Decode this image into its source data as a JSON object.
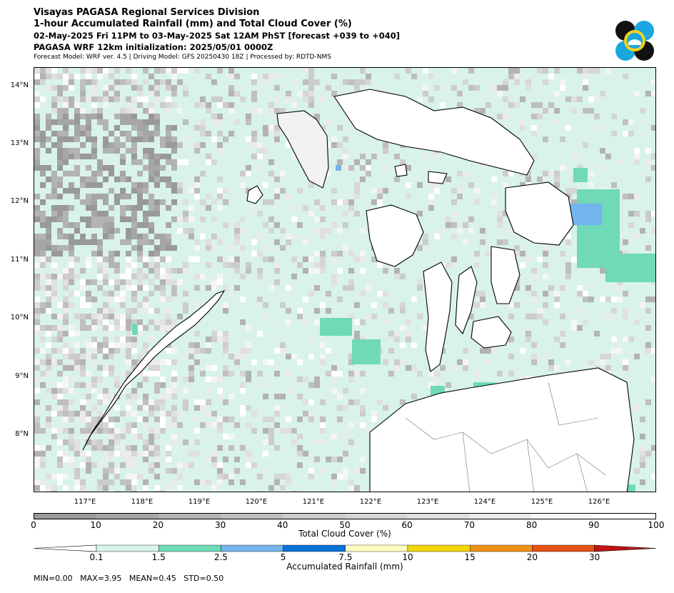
{
  "header": {
    "line1": "Visayas PAGASA Regional Services Division",
    "line2": "1-hour Accumulated Rainfall (mm) and Total Cloud Cover (%)",
    "line3": "02-May-2025 Fri 11PM to 03-May-2025 Sat 12AM PhST [forecast +039 to +040]",
    "line4": "PAGASA WRF 12km initialization: 2025/05/01 0000Z",
    "line5": "Forecast Model: WRF ver. 4.5 | Driving Model: GFS 20250430 18Z | Processed by: RDTD-NMS"
  },
  "map": {
    "lat_labels": [
      "14°N",
      "13°N",
      "12°N",
      "11°N",
      "10°N",
      "9°N",
      "8°N"
    ],
    "lon_labels": [
      "117°E",
      "118°E",
      "119°E",
      "120°E",
      "121°E",
      "122°E",
      "123°E",
      "124°E",
      "125°E",
      "126°E"
    ],
    "ocean_color": "#d9f2ec",
    "coast_color": "#000000"
  },
  "cloud_colorbar": {
    "label": "Total Cloud Cover (%)",
    "ticks": [
      "0",
      "10",
      "20",
      "30",
      "40",
      "50",
      "60",
      "70",
      "80",
      "90",
      "100"
    ],
    "colors": [
      "#999999",
      "#a6a6a6",
      "#b3b3b3",
      "#bfbfbf",
      "#cccccc",
      "#d6d6d6",
      "#e0e0e0",
      "#ebebeb",
      "#f5f5f5",
      "#ffffff"
    ]
  },
  "rain_colorbar": {
    "label": "Accumulated Rainfall (mm)",
    "ticks": [
      "0.1",
      "1.5",
      "2.5",
      "5",
      "7.5",
      "10",
      "15",
      "20",
      "30"
    ],
    "colors": [
      "#ffffff",
      "#d9f2ec",
      "#6fd9b8",
      "#74b4ef",
      "#0872d8",
      "#ffffc0",
      "#f4d70a",
      "#f09218",
      "#e55314",
      "#c01515"
    ]
  },
  "stats": "MIN=0.00   MAX=3.95   MEAN=0.45   STD=0.50"
}
